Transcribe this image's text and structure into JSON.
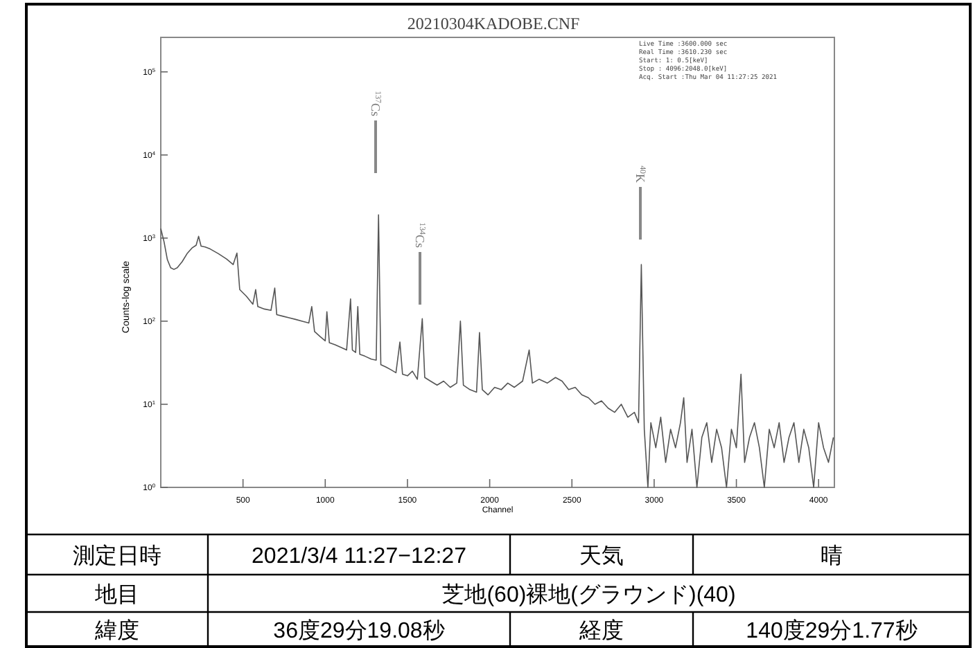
{
  "chart_data": [
    {
      "type": "line",
      "title": "20210304KADOBE.CNF",
      "xlabel": "Channel",
      "ylabel": "Counts-log scale",
      "log": "y",
      "color": "#555555",
      "xlim": [
        0,
        4096
      ],
      "ylim": [
        1,
        260000
      ],
      "xticks": [
        500,
        1000,
        1500,
        2000,
        2500,
        3000,
        3500,
        4000
      ],
      "yticks": [
        {
          "value": 1,
          "label": "10$^{0}$"
        },
        {
          "value": 10,
          "label": "10$^{1}$"
        },
        {
          "value": 100,
          "label": "10$^{2}$"
        },
        {
          "value": 1000,
          "label": "10$^{3}$"
        },
        {
          "value": 10000,
          "label": "10$^{4}$"
        },
        {
          "value": 100000,
          "label": "10$^{5}$"
        }
      ],
      "x": [
        0,
        20,
        40,
        60,
        80,
        100,
        130,
        160,
        190,
        215,
        230,
        245,
        270,
        300,
        350,
        400,
        440,
        463,
        480,
        520,
        560,
        577,
        590,
        630,
        670,
        693,
        705,
        740,
        780,
        820,
        860,
        900,
        918,
        935,
        970,
        1000,
        1010,
        1025,
        1060,
        1100,
        1130,
        1154,
        1165,
        1185,
        1198,
        1210,
        1240,
        1280,
        1310,
        1324,
        1338,
        1370,
        1400,
        1430,
        1454,
        1470,
        1500,
        1530,
        1560,
        1590,
        1605,
        1640,
        1680,
        1720,
        1760,
        1800,
        1822,
        1840,
        1880,
        1920,
        1938,
        1955,
        1990,
        2030,
        2070,
        2110,
        2150,
        2200,
        2240,
        2260,
        2300,
        2350,
        2400,
        2440,
        2480,
        2520,
        2560,
        2600,
        2640,
        2680,
        2720,
        2760,
        2800,
        2840,
        2880,
        2905,
        2922,
        2940,
        2962,
        2980,
        3010,
        3040,
        3070,
        3100,
        3130,
        3160,
        3180,
        3200,
        3230,
        3260,
        3290,
        3320,
        3350,
        3380,
        3410,
        3440,
        3470,
        3500,
        3528,
        3550,
        3580,
        3610,
        3640,
        3670,
        3700,
        3730,
        3760,
        3790,
        3820,
        3850,
        3880,
        3910,
        3940,
        3970,
        4000,
        4030,
        4060,
        4090
      ],
      "values": [
        1300,
        900,
        550,
        440,
        420,
        440,
        520,
        650,
        760,
        820,
        1050,
        800,
        780,
        740,
        650,
        560,
        480,
        660,
        240,
        200,
        160,
        240,
        150,
        140,
        135,
        250,
        120,
        115,
        110,
        105,
        100,
        95,
        150,
        75,
        65,
        58,
        130,
        55,
        52,
        48,
        45,
        185,
        45,
        42,
        150,
        40,
        38,
        35,
        34,
        1900,
        30,
        28,
        26,
        24,
        56,
        23,
        22,
        25,
        20,
        107,
        21,
        19,
        17,
        19,
        16,
        18,
        100,
        17,
        15,
        14,
        73,
        15,
        13,
        16,
        15,
        18,
        16,
        19,
        45,
        18,
        20,
        18,
        21,
        19,
        15,
        16,
        13,
        12,
        10,
        11,
        9,
        8,
        10,
        7,
        8,
        6,
        480,
        5,
        1,
        6,
        3,
        7,
        2,
        5,
        3,
        6,
        12,
        2,
        5,
        1,
        4,
        6,
        2,
        5,
        3,
        1,
        5,
        3,
        23,
        2,
        4,
        6,
        3,
        1,
        5,
        3,
        6,
        2,
        4,
        6,
        2,
        5,
        3,
        1,
        6,
        3,
        2,
        4
      ],
      "annotations": [
        "Live Time :3600.000 sec",
        "Real Time :3610.230 sec",
        "Start:    1:    0.5[keV]",
        "Stop : 4096:2048.0[keV]",
        "Acq. Start :Thu Mar 04 11:27:25 2021",
        "$^{137}$Cs",
        "$^{134}$Cs",
        "$^{40}$K"
      ]
    },
    {
      "type": "other",
      "annotations": [
        "測定日時",
        "2021/3/4 11:27−12:27",
        "天気",
        "晴",
        "地目",
        "芝地(60)裸地(グラウンド)(40)",
        "緯度",
        "36度29分19.08秒",
        "経度",
        "140度29分1.77秒"
      ]
    }
  ]
}
